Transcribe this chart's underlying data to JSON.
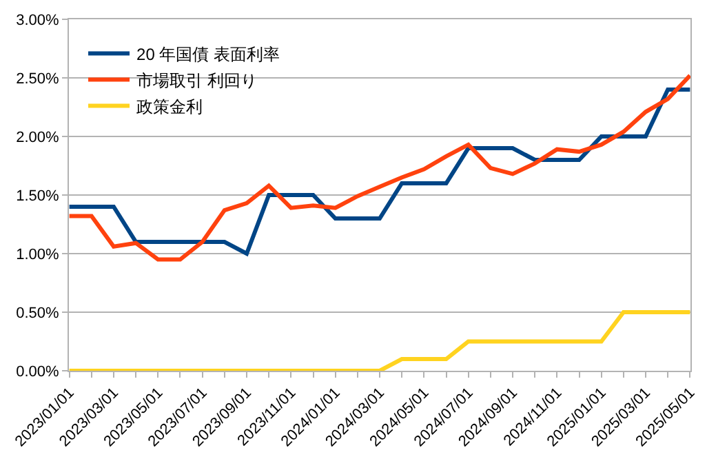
{
  "chart_data": {
    "type": "line",
    "categories": [
      "2023/01/01",
      null,
      "2023/03/01",
      null,
      "2023/05/01",
      null,
      "2023/07/01",
      null,
      "2023/09/01",
      null,
      "2023/11/01",
      null,
      "2024/01/01",
      null,
      "2024/03/01",
      null,
      "2024/05/01",
      null,
      "2024/07/01",
      null,
      "2024/09/01",
      null,
      "2024/11/01",
      null,
      "2025/01/01",
      null,
      "2025/03/01",
      null,
      "2025/05/01"
    ],
    "series": [
      {
        "name": "20 年国債 表面利率",
        "color": "#004586",
        "values": [
          1.4,
          1.4,
          1.4,
          1.1,
          1.1,
          1.1,
          1.1,
          1.1,
          1.0,
          1.5,
          1.5,
          1.5,
          1.3,
          1.3,
          1.3,
          1.6,
          1.6,
          1.6,
          1.9,
          1.9,
          1.9,
          1.8,
          1.8,
          1.8,
          2.0,
          2.0,
          2.0,
          2.4,
          2.4
        ]
      },
      {
        "name": "市場取引 利回り",
        "color": "#ff420e",
        "values": [
          1.32,
          1.32,
          1.06,
          1.09,
          0.95,
          0.95,
          1.1,
          1.37,
          1.43,
          1.58,
          1.39,
          1.41,
          1.39,
          1.49,
          1.57,
          1.65,
          1.72,
          1.83,
          1.93,
          1.73,
          1.68,
          1.77,
          1.89,
          1.87,
          1.93,
          2.04,
          2.21,
          2.32,
          2.52
        ]
      },
      {
        "name": "政策金利",
        "color": "#ffd320",
        "values": [
          0,
          0,
          0,
          0,
          0,
          0,
          0,
          0,
          0,
          0,
          0,
          0,
          0,
          0,
          0,
          0.1,
          0.1,
          0.1,
          0.25,
          0.25,
          0.25,
          0.25,
          0.25,
          0.25,
          0.25,
          0.5,
          0.5,
          0.5,
          0.5
        ]
      }
    ],
    "ylim": [
      0,
      3
    ],
    "yticks": [
      {
        "value": 0,
        "label": "0.00%"
      },
      {
        "value": 0.5,
        "label": "0.50%"
      },
      {
        "value": 1,
        "label": "1.00%"
      },
      {
        "value": 1.5,
        "label": "1.50%"
      },
      {
        "value": 2,
        "label": "2.00%"
      },
      {
        "value": 2.5,
        "label": "2.50%"
      },
      {
        "value": 3,
        "label": "3.00%"
      }
    ],
    "grid": "y",
    "legend": "top left",
    "marker": "none",
    "line_style": "solid"
  }
}
